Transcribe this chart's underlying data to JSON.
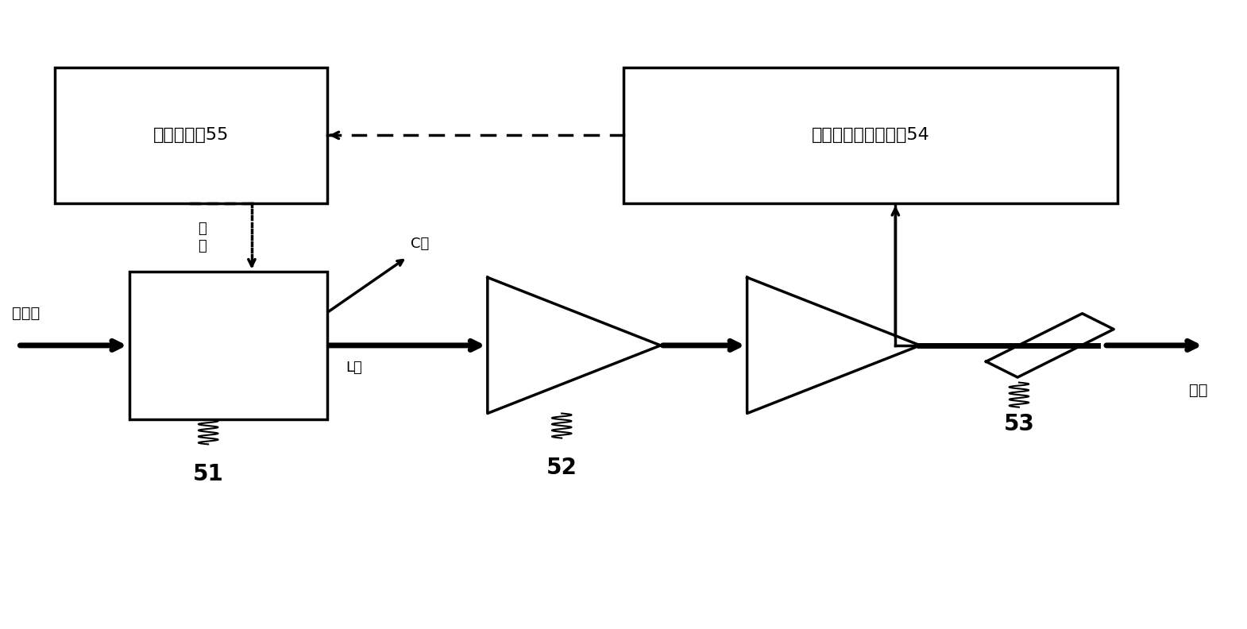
{
  "bg_color": "#ffffff",
  "line_color": "#000000",
  "box55_label": "滤波放大器55",
  "box54_label": "自参考零频探测装置54",
  "label_51": "51",
  "label_52": "52",
  "label_53": "53",
  "label_input": "波层光",
  "label_output": "输出",
  "label_C": "C波",
  "label_L": "L波",
  "label_control": "要\n控"
}
